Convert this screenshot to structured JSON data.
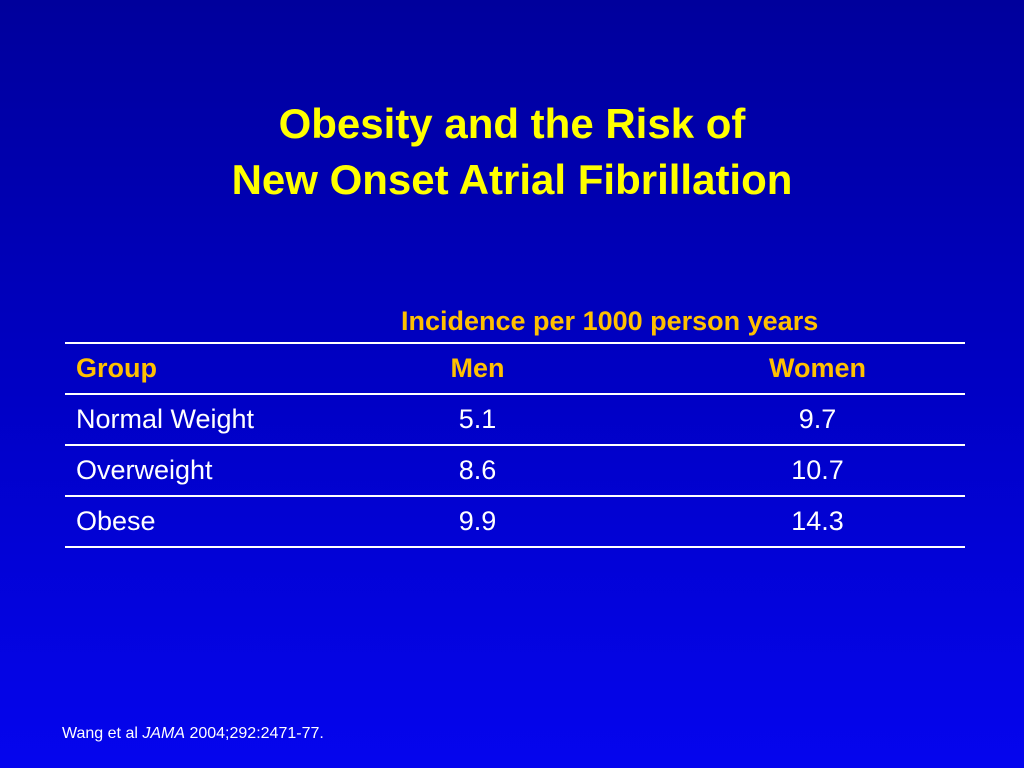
{
  "title": {
    "line1": "Obesity and the Risk of",
    "line2": "New Onset Atrial Fibrillation"
  },
  "table": {
    "super_header": "Incidence per 1000 person years",
    "columns": [
      "Group",
      "Men",
      "Women"
    ],
    "rows": [
      [
        "Normal Weight",
        "5.1",
        "9.7"
      ],
      [
        "Overweight",
        "8.6",
        "10.7"
      ],
      [
        "Obese",
        "9.9",
        "14.3"
      ]
    ]
  },
  "citation": {
    "authors": "Wang et al ",
    "journal": "JAMA",
    "details": " 2004;292:2471-77."
  },
  "colors": {
    "background": "#0000c4",
    "title": "#ffff00",
    "header": "#ffc000",
    "body_text": "#ffffff"
  }
}
